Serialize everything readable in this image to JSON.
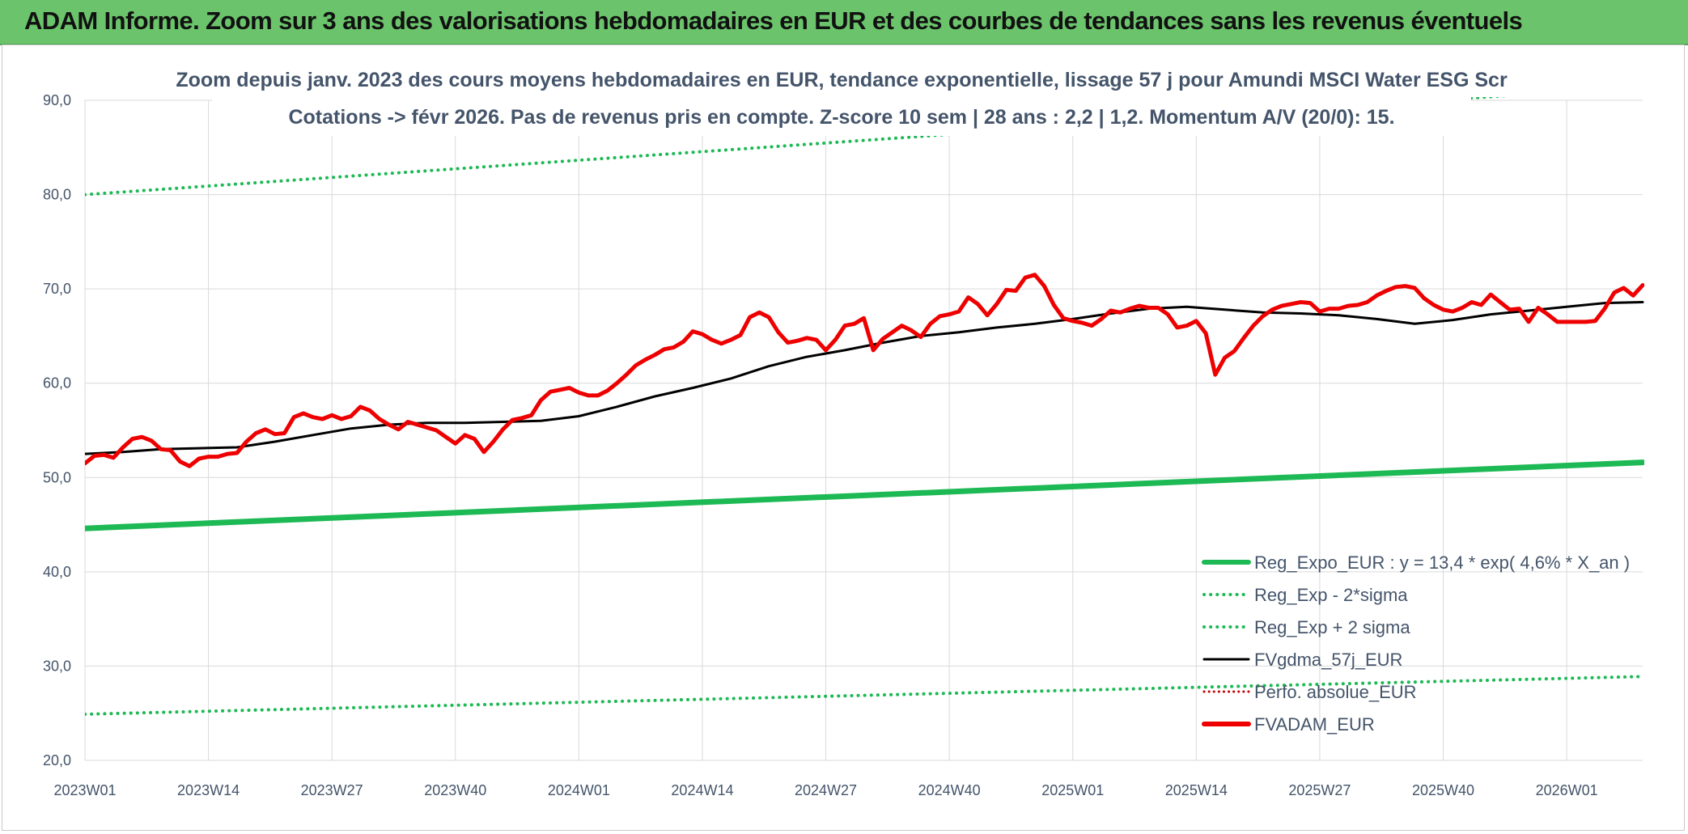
{
  "header": {
    "banner": "ADAM Informe. Zoom sur 3 ans des valorisations hebdomadaires en EUR et des courbes de tendances sans les revenus éventuels"
  },
  "chart_data": {
    "type": "line",
    "title": "Zoom depuis janv. 2023 des cours moyens hebdomadaires en EUR, tendance exponentielle, lissage 57 j pour Amundi MSCI Water ESG Scr",
    "subtitle": "Cotations -> févr 2026. Pas de revenus pris en compte. Z-score 10 sem | 28 ans : 2,2 | 1,2. Momentum A/V (20/0): 15.",
    "xlabel": "",
    "ylabel": "",
    "ylim": [
      20,
      90
    ],
    "yticks": [
      "20,0",
      "30,0",
      "40,0",
      "50,0",
      "60,0",
      "70,0",
      "80,0",
      "90,0"
    ],
    "x_tick_labels": [
      "2023W01",
      "2023W14",
      "2023W27",
      "2023W40",
      "2024W01",
      "2024W14",
      "2024W27",
      "2024W40",
      "2025W01",
      "2025W14",
      "2025W27",
      "2025W40",
      "2026W01"
    ],
    "x_tick_weeks": [
      0,
      13,
      26,
      39,
      52,
      65,
      78,
      91,
      104,
      117,
      130,
      143,
      156
    ],
    "x_range_weeks": [
      0,
      164
    ],
    "grid": true,
    "legend_position": "bottom-right",
    "series": [
      {
        "name": "Reg_Expo_EUR : y = 13,4 * exp( 4,6% *  X_an )",
        "color": "#1db954",
        "style": "solid-thick",
        "points": [
          [
            0,
            44.6
          ],
          [
            164,
            51.6
          ]
        ]
      },
      {
        "name": "Reg_Exp - 2*sigma",
        "color": "#1db954",
        "style": "dotted",
        "points": [
          [
            0,
            24.9
          ],
          [
            164,
            28.9
          ]
        ]
      },
      {
        "name": "Reg_Exp + 2 sigma",
        "color": "#1db954",
        "style": "dotted",
        "points": [
          [
            0,
            80.0
          ],
          [
            164,
            91.5
          ]
        ]
      },
      {
        "name": "FVgdma_57j_EUR",
        "color": "#000000",
        "style": "solid",
        "points": [
          [
            0,
            52.5
          ],
          [
            4,
            52.7
          ],
          [
            8,
            53.0
          ],
          [
            12,
            53.1
          ],
          [
            16,
            53.2
          ],
          [
            20,
            53.8
          ],
          [
            24,
            54.5
          ],
          [
            28,
            55.2
          ],
          [
            32,
            55.6
          ],
          [
            36,
            55.8
          ],
          [
            40,
            55.8
          ],
          [
            44,
            55.9
          ],
          [
            48,
            56.0
          ],
          [
            52,
            56.5
          ],
          [
            56,
            57.5
          ],
          [
            60,
            58.6
          ],
          [
            64,
            59.5
          ],
          [
            68,
            60.5
          ],
          [
            72,
            61.8
          ],
          [
            76,
            62.8
          ],
          [
            80,
            63.5
          ],
          [
            84,
            64.3
          ],
          [
            88,
            65.0
          ],
          [
            92,
            65.4
          ],
          [
            96,
            65.9
          ],
          [
            100,
            66.3
          ],
          [
            104,
            66.8
          ],
          [
            108,
            67.4
          ],
          [
            112,
            67.9
          ],
          [
            116,
            68.1
          ],
          [
            120,
            67.8
          ],
          [
            124,
            67.5
          ],
          [
            128,
            67.4
          ],
          [
            132,
            67.2
          ],
          [
            136,
            66.8
          ],
          [
            140,
            66.3
          ],
          [
            144,
            66.7
          ],
          [
            148,
            67.3
          ],
          [
            152,
            67.7
          ],
          [
            156,
            68.1
          ],
          [
            160,
            68.5
          ],
          [
            164,
            68.6
          ]
        ]
      },
      {
        "name": "Perfo. absolue_EUR",
        "color": "#c00000",
        "style": "dotted-thin",
        "points": []
      },
      {
        "name": "FVADAM_EUR",
        "color": "#ee0000",
        "style": "solid-thick",
        "points": [
          [
            0,
            51.5
          ],
          [
            1,
            52.3
          ],
          [
            2,
            52.4
          ],
          [
            3,
            52.1
          ],
          [
            4,
            53.2
          ],
          [
            5,
            54.1
          ],
          [
            6,
            54.3
          ],
          [
            7,
            53.9
          ],
          [
            8,
            53.0
          ],
          [
            9,
            52.9
          ],
          [
            10,
            51.7
          ],
          [
            11,
            51.2
          ],
          [
            12,
            52.0
          ],
          [
            13,
            52.2
          ],
          [
            14,
            52.2
          ],
          [
            15,
            52.5
          ],
          [
            16,
            52.6
          ],
          [
            17,
            53.8
          ],
          [
            18,
            54.7
          ],
          [
            19,
            55.1
          ],
          [
            20,
            54.6
          ],
          [
            21,
            54.7
          ],
          [
            22,
            56.4
          ],
          [
            23,
            56.8
          ],
          [
            24,
            56.4
          ],
          [
            25,
            56.2
          ],
          [
            26,
            56.6
          ],
          [
            27,
            56.2
          ],
          [
            28,
            56.5
          ],
          [
            29,
            57.5
          ],
          [
            30,
            57.1
          ],
          [
            31,
            56.2
          ],
          [
            32,
            55.6
          ],
          [
            33,
            55.1
          ],
          [
            34,
            55.9
          ],
          [
            35,
            55.6
          ],
          [
            36,
            55.3
          ],
          [
            37,
            55.0
          ],
          [
            38,
            54.3
          ],
          [
            39,
            53.6
          ],
          [
            40,
            54.5
          ],
          [
            41,
            54.1
          ],
          [
            42,
            52.7
          ],
          [
            43,
            53.8
          ],
          [
            44,
            55.1
          ],
          [
            45,
            56.1
          ],
          [
            46,
            56.3
          ],
          [
            47,
            56.6
          ],
          [
            48,
            58.2
          ],
          [
            49,
            59.1
          ],
          [
            50,
            59.3
          ],
          [
            51,
            59.5
          ],
          [
            52,
            59.0
          ],
          [
            53,
            58.7
          ],
          [
            54,
            58.7
          ],
          [
            55,
            59.2
          ],
          [
            56,
            60.0
          ],
          [
            57,
            60.9
          ],
          [
            58,
            61.9
          ],
          [
            59,
            62.5
          ],
          [
            60,
            63.0
          ],
          [
            61,
            63.6
          ],
          [
            62,
            63.8
          ],
          [
            63,
            64.4
          ],
          [
            64,
            65.5
          ],
          [
            65,
            65.2
          ],
          [
            66,
            64.6
          ],
          [
            67,
            64.2
          ],
          [
            68,
            64.6
          ],
          [
            69,
            65.1
          ],
          [
            70,
            67.0
          ],
          [
            71,
            67.5
          ],
          [
            72,
            67.0
          ],
          [
            73,
            65.4
          ],
          [
            74,
            64.3
          ],
          [
            75,
            64.5
          ],
          [
            76,
            64.8
          ],
          [
            77,
            64.6
          ],
          [
            78,
            63.5
          ],
          [
            79,
            64.6
          ],
          [
            80,
            66.1
          ],
          [
            81,
            66.3
          ],
          [
            82,
            66.9
          ],
          [
            83,
            63.5
          ],
          [
            84,
            64.7
          ],
          [
            85,
            65.4
          ],
          [
            86,
            66.1
          ],
          [
            87,
            65.6
          ],
          [
            88,
            64.9
          ],
          [
            89,
            66.3
          ],
          [
            90,
            67.1
          ],
          [
            91,
            67.3
          ],
          [
            92,
            67.6
          ],
          [
            93,
            69.1
          ],
          [
            94,
            68.4
          ],
          [
            95,
            67.2
          ],
          [
            96,
            68.4
          ],
          [
            97,
            69.9
          ],
          [
            98,
            69.8
          ],
          [
            99,
            71.2
          ],
          [
            100,
            71.5
          ],
          [
            101,
            70.3
          ],
          [
            102,
            68.3
          ],
          [
            103,
            66.9
          ],
          [
            104,
            66.6
          ],
          [
            105,
            66.4
          ],
          [
            106,
            66.1
          ],
          [
            107,
            66.8
          ],
          [
            108,
            67.7
          ],
          [
            109,
            67.5
          ],
          [
            110,
            67.9
          ],
          [
            111,
            68.2
          ],
          [
            112,
            68.0
          ],
          [
            113,
            68.0
          ],
          [
            114,
            67.3
          ],
          [
            115,
            65.9
          ],
          [
            116,
            66.1
          ],
          [
            117,
            66.6
          ],
          [
            118,
            65.3
          ],
          [
            119,
            60.9
          ],
          [
            120,
            62.7
          ],
          [
            121,
            63.4
          ],
          [
            122,
            64.8
          ],
          [
            123,
            66.1
          ],
          [
            124,
            67.1
          ],
          [
            125,
            67.8
          ],
          [
            126,
            68.2
          ],
          [
            127,
            68.4
          ],
          [
            128,
            68.6
          ],
          [
            129,
            68.5
          ],
          [
            130,
            67.6
          ],
          [
            131,
            67.9
          ],
          [
            132,
            67.9
          ],
          [
            133,
            68.2
          ],
          [
            134,
            68.3
          ],
          [
            135,
            68.6
          ],
          [
            136,
            69.3
          ],
          [
            137,
            69.8
          ],
          [
            138,
            70.2
          ],
          [
            139,
            70.3
          ],
          [
            140,
            70.1
          ],
          [
            141,
            69.0
          ],
          [
            142,
            68.3
          ],
          [
            143,
            67.8
          ],
          [
            144,
            67.6
          ],
          [
            145,
            68.0
          ],
          [
            146,
            68.6
          ],
          [
            147,
            68.3
          ],
          [
            148,
            69.4
          ],
          [
            149,
            68.6
          ],
          [
            150,
            67.8
          ],
          [
            151,
            67.9
          ],
          [
            152,
            66.5
          ],
          [
            153,
            68.0
          ],
          [
            154,
            67.3
          ],
          [
            155,
            66.5
          ],
          [
            156,
            66.5
          ],
          [
            157,
            66.5
          ],
          [
            158,
            66.5
          ],
          [
            159,
            66.6
          ],
          [
            160,
            67.9
          ],
          [
            161,
            69.6
          ],
          [
            162,
            70.1
          ],
          [
            163,
            69.3
          ],
          [
            164,
            70.4
          ]
        ]
      }
    ]
  }
}
